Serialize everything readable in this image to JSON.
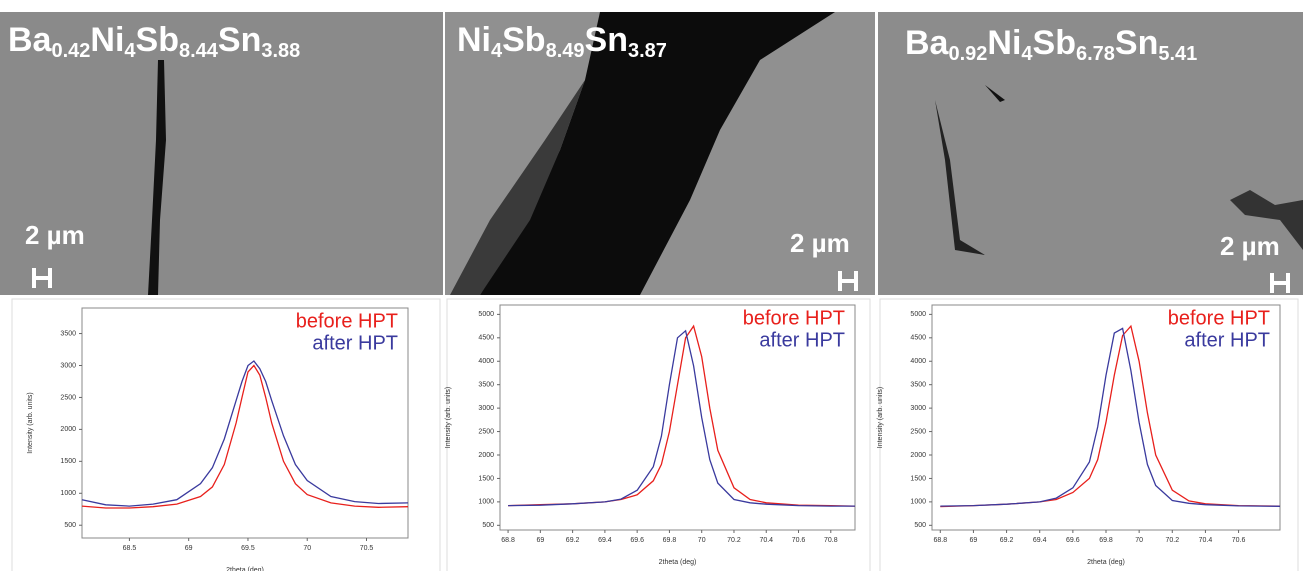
{
  "images": [
    {
      "formula": [
        {
          "el": "Ba",
          "sub": "0.42"
        },
        {
          "el": "Ni",
          "sub": "4"
        },
        {
          "el": "Sb",
          "sub": "8.44"
        },
        {
          "el": "Sn",
          "sub": "3.88"
        }
      ],
      "scale": "2 µm"
    },
    {
      "formula": [
        {
          "el": "Ni",
          "sub": "4"
        },
        {
          "el": "Sb",
          "sub": "8.49"
        },
        {
          "el": "Sn",
          "sub": "3.87"
        }
      ],
      "scale": "2 µm"
    },
    {
      "formula": [
        {
          "el": "Ba",
          "sub": "0.92"
        },
        {
          "el": "Ni",
          "sub": "4"
        },
        {
          "el": "Sb",
          "sub": "6.78"
        },
        {
          "el": "Sn",
          "sub": "5.41"
        }
      ],
      "scale": "2 µm"
    }
  ],
  "chart_data": [
    {
      "type": "line",
      "xlabel": "2theta (deg)",
      "ylabel": "Intensity (arb. units)",
      "x": [
        68.1,
        68.3,
        68.5,
        68.7,
        68.9,
        69.1,
        69.2,
        69.3,
        69.4,
        69.45,
        69.5,
        69.55,
        69.6,
        69.65,
        69.7,
        69.8,
        69.9,
        70.0,
        70.2,
        70.4,
        70.6,
        70.85
      ],
      "xlim": [
        68.1,
        70.85
      ],
      "ylim": [
        300,
        3900
      ],
      "xticks": [
        68.5,
        69,
        69.5,
        70,
        70.5
      ],
      "yticks": [
        500,
        1000,
        1500,
        2000,
        2500,
        3000,
        3500
      ],
      "series": [
        {
          "name": "before HPT",
          "color": "#e8201c",
          "values": [
            800,
            770,
            770,
            790,
            830,
            950,
            1100,
            1450,
            2100,
            2500,
            2900,
            3000,
            2850,
            2500,
            2100,
            1500,
            1150,
            980,
            850,
            800,
            780,
            790
          ]
        },
        {
          "name": "after HPT",
          "color": "#3a3a9e",
          "values": [
            900,
            820,
            800,
            830,
            900,
            1150,
            1400,
            1850,
            2450,
            2750,
            3000,
            3070,
            2950,
            2750,
            2450,
            1900,
            1450,
            1200,
            950,
            870,
            840,
            850
          ]
        }
      ]
    },
    {
      "type": "line",
      "xlabel": "2theta (deg)",
      "ylabel": "Intensity (arb. units)",
      "x": [
        68.8,
        69.0,
        69.2,
        69.4,
        69.5,
        69.6,
        69.7,
        69.75,
        69.8,
        69.85,
        69.9,
        69.95,
        70.0,
        70.05,
        70.1,
        70.2,
        70.3,
        70.4,
        70.6,
        70.8,
        70.95
      ],
      "xlim": [
        68.75,
        70.95
      ],
      "ylim": [
        400,
        5200
      ],
      "xticks": [
        68.8,
        69,
        69.2,
        69.4,
        69.6,
        69.8,
        70,
        70.2,
        70.4,
        70.6,
        70.8
      ],
      "yticks": [
        500,
        1000,
        1500,
        2000,
        2500,
        3000,
        3500,
        4000,
        4500,
        5000
      ],
      "series": [
        {
          "name": "before HPT",
          "color": "#e8201c",
          "values": [
            920,
            940,
            960,
            1000,
            1050,
            1150,
            1450,
            1800,
            2500,
            3500,
            4500,
            4750,
            4100,
            3000,
            2100,
            1300,
            1050,
            980,
            930,
            920,
            910
          ]
        },
        {
          "name": "after HPT",
          "color": "#3a3a9e",
          "values": [
            920,
            930,
            960,
            1000,
            1060,
            1250,
            1750,
            2400,
            3500,
            4500,
            4650,
            3900,
            2800,
            1900,
            1400,
            1050,
            980,
            950,
            920,
            910,
            910
          ]
        }
      ]
    },
    {
      "type": "line",
      "xlabel": "2theta (deg)",
      "ylabel": "Intensity (arb. units)",
      "x": [
        68.8,
        69.0,
        69.2,
        69.4,
        69.5,
        69.6,
        69.7,
        69.75,
        69.8,
        69.85,
        69.9,
        69.95,
        70.0,
        70.05,
        70.1,
        70.2,
        70.3,
        70.4,
        70.6,
        70.85
      ],
      "xlim": [
        68.75,
        70.85
      ],
      "ylim": [
        400,
        5200
      ],
      "xticks": [
        68.8,
        69,
        69.2,
        69.4,
        69.6,
        69.8,
        70,
        70.2,
        70.4,
        70.6
      ],
      "yticks": [
        500,
        1000,
        1500,
        2000,
        2500,
        3000,
        3500,
        4000,
        4500,
        5000
      ],
      "series": [
        {
          "name": "before HPT",
          "color": "#e8201c",
          "values": [
            900,
            920,
            950,
            1000,
            1050,
            1200,
            1500,
            1900,
            2700,
            3700,
            4550,
            4750,
            4000,
            2900,
            2000,
            1250,
            1020,
            960,
            920,
            910
          ]
        },
        {
          "name": "after HPT",
          "color": "#3a3a9e",
          "values": [
            910,
            920,
            950,
            1000,
            1080,
            1300,
            1850,
            2600,
            3700,
            4600,
            4700,
            3800,
            2700,
            1800,
            1350,
            1030,
            970,
            940,
            915,
            905
          ]
        }
      ]
    }
  ]
}
